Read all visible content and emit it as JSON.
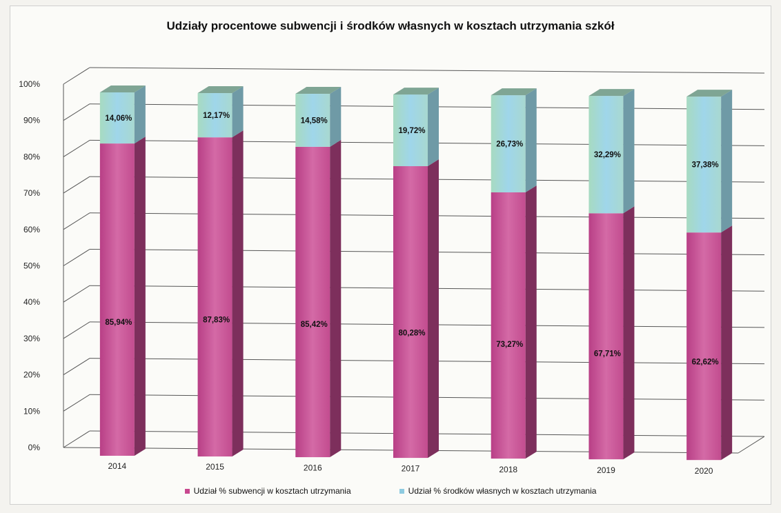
{
  "chart_data": {
    "type": "bar",
    "stacked": true,
    "three_d": true,
    "title": "Udziały procentowe subwencji i środków własnych w kosztach utrzymania szkół",
    "xlabel": "",
    "ylabel": "",
    "ylim": [
      0,
      100
    ],
    "y_ticks": [
      "0%",
      "10%",
      "20%",
      "30%",
      "40%",
      "50%",
      "60%",
      "70%",
      "80%",
      "90%",
      "100%"
    ],
    "categories": [
      "2014",
      "2015",
      "2016",
      "2017",
      "2018",
      "2019",
      "2020"
    ],
    "series": [
      {
        "name": "Udział % subwencji w kosztach utrzymania",
        "values": [
          85.94,
          87.83,
          85.42,
          80.28,
          73.27,
          67.71,
          62.62
        ],
        "labels": [
          "85,94%",
          "87,83%",
          "85,42%",
          "80,28%",
          "73,27%",
          "67,71%",
          "62,62%"
        ],
        "color": "#c8488f"
      },
      {
        "name": "Udział % środków własnych w kosztach utrzymania",
        "values": [
          14.06,
          12.17,
          14.58,
          19.72,
          26.73,
          32.29,
          37.38
        ],
        "labels": [
          "14,06%",
          "12,17%",
          "14,58%",
          "19,72%",
          "26,73%",
          "32,29%",
          "37,38%"
        ],
        "color": "#8ecbe0"
      }
    ],
    "grid": true,
    "legend_position": "bottom"
  }
}
